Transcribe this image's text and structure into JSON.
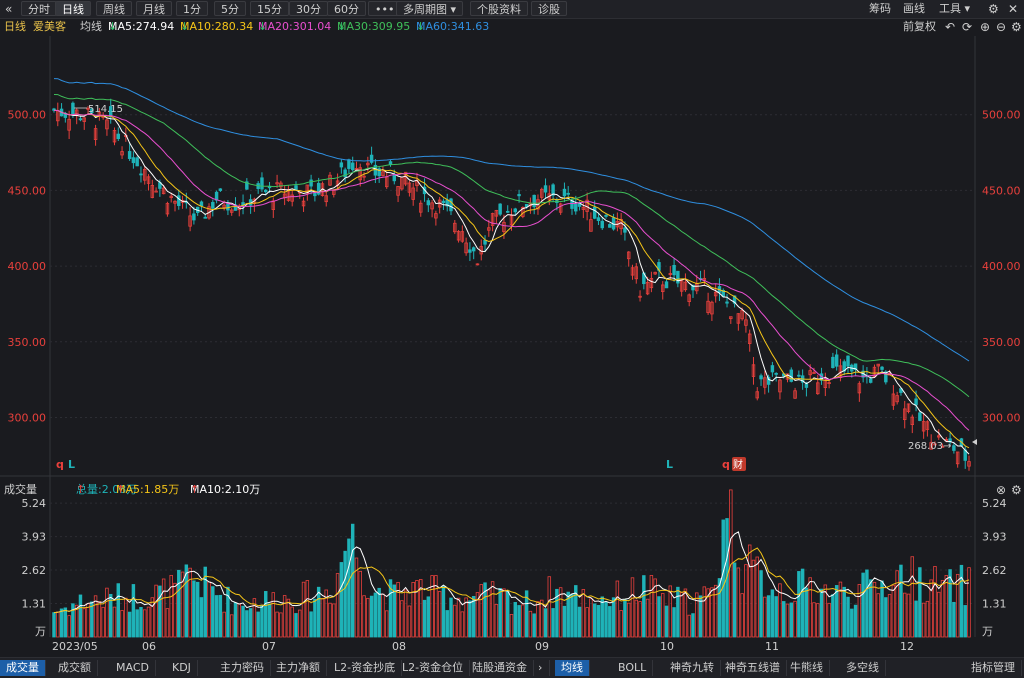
{
  "toolbar": {
    "back_icon": "«",
    "tabs": [
      "分时",
      "日线",
      "周线",
      "月线",
      "1分",
      "5分",
      "15分",
      "30分",
      "60分",
      "•••",
      "多周期图",
      "个股资料",
      "诊股"
    ],
    "active_tab": 1,
    "right": [
      "筹码",
      "画线",
      "工具"
    ],
    "settings_icon": "gear",
    "close_icon": "close"
  },
  "info": {
    "period": "日线",
    "stock_name": "爱美客",
    "ma_label": "均线",
    "ma5": "MA5:274.94",
    "ma10": "MA10:280.34",
    "ma20": "MA20:301.04",
    "ma30": "MA30:309.95",
    "ma60": "MA60:341.63",
    "fq": "前复权"
  },
  "colors": {
    "up": "#e8403c",
    "down": "#1fb3b8",
    "ma5": "#ffffff",
    "ma10": "#f5c518",
    "ma20": "#e84fcf",
    "ma30": "#3fbf5a",
    "ma60": "#2f8fe0",
    "grid": "#2c2d33"
  },
  "price_axis": {
    "ticks": [
      "500.00",
      "450.00",
      "400.00",
      "350.00",
      "300.00"
    ],
    "tick_values": [
      500,
      450,
      400,
      350,
      300
    ],
    "range": [
      262,
      552
    ]
  },
  "annotations": {
    "high": "514.15",
    "low": "268.03→",
    "markers": [
      "q",
      "L",
      "L",
      "q",
      "财"
    ]
  },
  "vol_info": {
    "label": "成交量",
    "total": "总量:2.08万",
    "ma5": "MA5:1.85万",
    "ma10": "MA10:2.10万"
  },
  "vol_axis": {
    "ticks": [
      "5.24",
      "3.93",
      "2.62",
      "1.31"
    ],
    "tick_values": [
      5.24,
      3.93,
      2.62,
      1.31
    ],
    "unit": "万",
    "max": 5.4
  },
  "date_axis": [
    "2023/05",
    "06",
    "07",
    "08",
    "09",
    "10",
    "11",
    "12"
  ],
  "bottom_tabs": [
    "成交量",
    "成交额",
    "MACD",
    "KDJ",
    "主力密码",
    "主力净额",
    "L2-资金抄底",
    "L2-资金仓位",
    "陆股通资金",
    "均线",
    "BOLL",
    "神奇九转",
    "神奇五线谱",
    "牛熊线",
    "多空线",
    "指标管理"
  ],
  "bottom_active": [
    0,
    9
  ],
  "chart_data": {
    "type": "candlestick",
    "x_months": [
      "2023/05",
      "06",
      "07",
      "08",
      "09",
      "10",
      "11",
      "12"
    ],
    "price_ticks": [
      500,
      450,
      400,
      350,
      300
    ],
    "ma_last": {
      "ma5": 274.94,
      "ma10": 280.34,
      "ma20": 301.04,
      "ma30": 309.95,
      "ma60": 341.63
    },
    "annotated_high": 514.15,
    "annotated_low": 268.03,
    "close_path": [
      [
        0,
        503
      ],
      [
        8,
        500
      ],
      [
        15,
        492
      ],
      [
        22,
        470
      ],
      [
        28,
        452
      ],
      [
        33,
        440
      ],
      [
        38,
        430
      ],
      [
        43,
        445
      ],
      [
        48,
        442
      ],
      [
        55,
        448
      ],
      [
        62,
        450
      ],
      [
        68,
        448
      ],
      [
        74,
        455
      ],
      [
        80,
        470
      ],
      [
        84,
        462
      ],
      [
        90,
        460
      ],
      [
        96,
        450
      ],
      [
        102,
        440
      ],
      [
        108,
        425
      ],
      [
        112,
        405
      ],
      [
        116,
        428
      ],
      [
        122,
        440
      ],
      [
        128,
        445
      ],
      [
        134,
        444
      ],
      [
        138,
        442
      ],
      [
        144,
        433
      ],
      [
        150,
        425
      ],
      [
        155,
        385
      ],
      [
        160,
        392
      ],
      [
        166,
        388
      ],
      [
        172,
        385
      ],
      [
        178,
        375
      ],
      [
        183,
        362
      ],
      [
        186,
        322
      ],
      [
        192,
        325
      ],
      [
        198,
        322
      ],
      [
        204,
        330
      ],
      [
        210,
        330
      ],
      [
        214,
        325
      ],
      [
        218,
        330
      ],
      [
        222,
        322
      ],
      [
        226,
        308
      ],
      [
        230,
        295
      ],
      [
        234,
        285
      ],
      [
        238,
        280
      ],
      [
        242,
        272
      ]
    ],
    "volume_path": [
      [
        0,
        1.0
      ],
      [
        8,
        1.4
      ],
      [
        15,
        1.5
      ],
      [
        22,
        1.6
      ],
      [
        28,
        1.7
      ],
      [
        33,
        1.9
      ],
      [
        36,
        2.4
      ],
      [
        40,
        2.0
      ],
      [
        48,
        1.3
      ],
      [
        55,
        1.4
      ],
      [
        62,
        1.5
      ],
      [
        68,
        1.6
      ],
      [
        74,
        1.9
      ],
      [
        78,
        4.1
      ],
      [
        84,
        1.9
      ],
      [
        90,
        1.6
      ],
      [
        96,
        1.9
      ],
      [
        102,
        1.7
      ],
      [
        108,
        1.5
      ],
      [
        114,
        1.6
      ],
      [
        120,
        1.5
      ],
      [
        126,
        1.3
      ],
      [
        132,
        1.8
      ],
      [
        138,
        1.6
      ],
      [
        144,
        1.5
      ],
      [
        150,
        1.6
      ],
      [
        156,
        1.9
      ],
      [
        162,
        1.5
      ],
      [
        168,
        1.4
      ],
      [
        174,
        1.6
      ],
      [
        178,
        5.2
      ],
      [
        182,
        2.8
      ],
      [
        188,
        2.2
      ],
      [
        194,
        1.8
      ],
      [
        200,
        2.0
      ],
      [
        206,
        1.7
      ],
      [
        212,
        1.8
      ],
      [
        218,
        2.0
      ],
      [
        224,
        2.4
      ],
      [
        230,
        2.2
      ],
      [
        236,
        1.9
      ],
      [
        242,
        2.08
      ]
    ]
  }
}
